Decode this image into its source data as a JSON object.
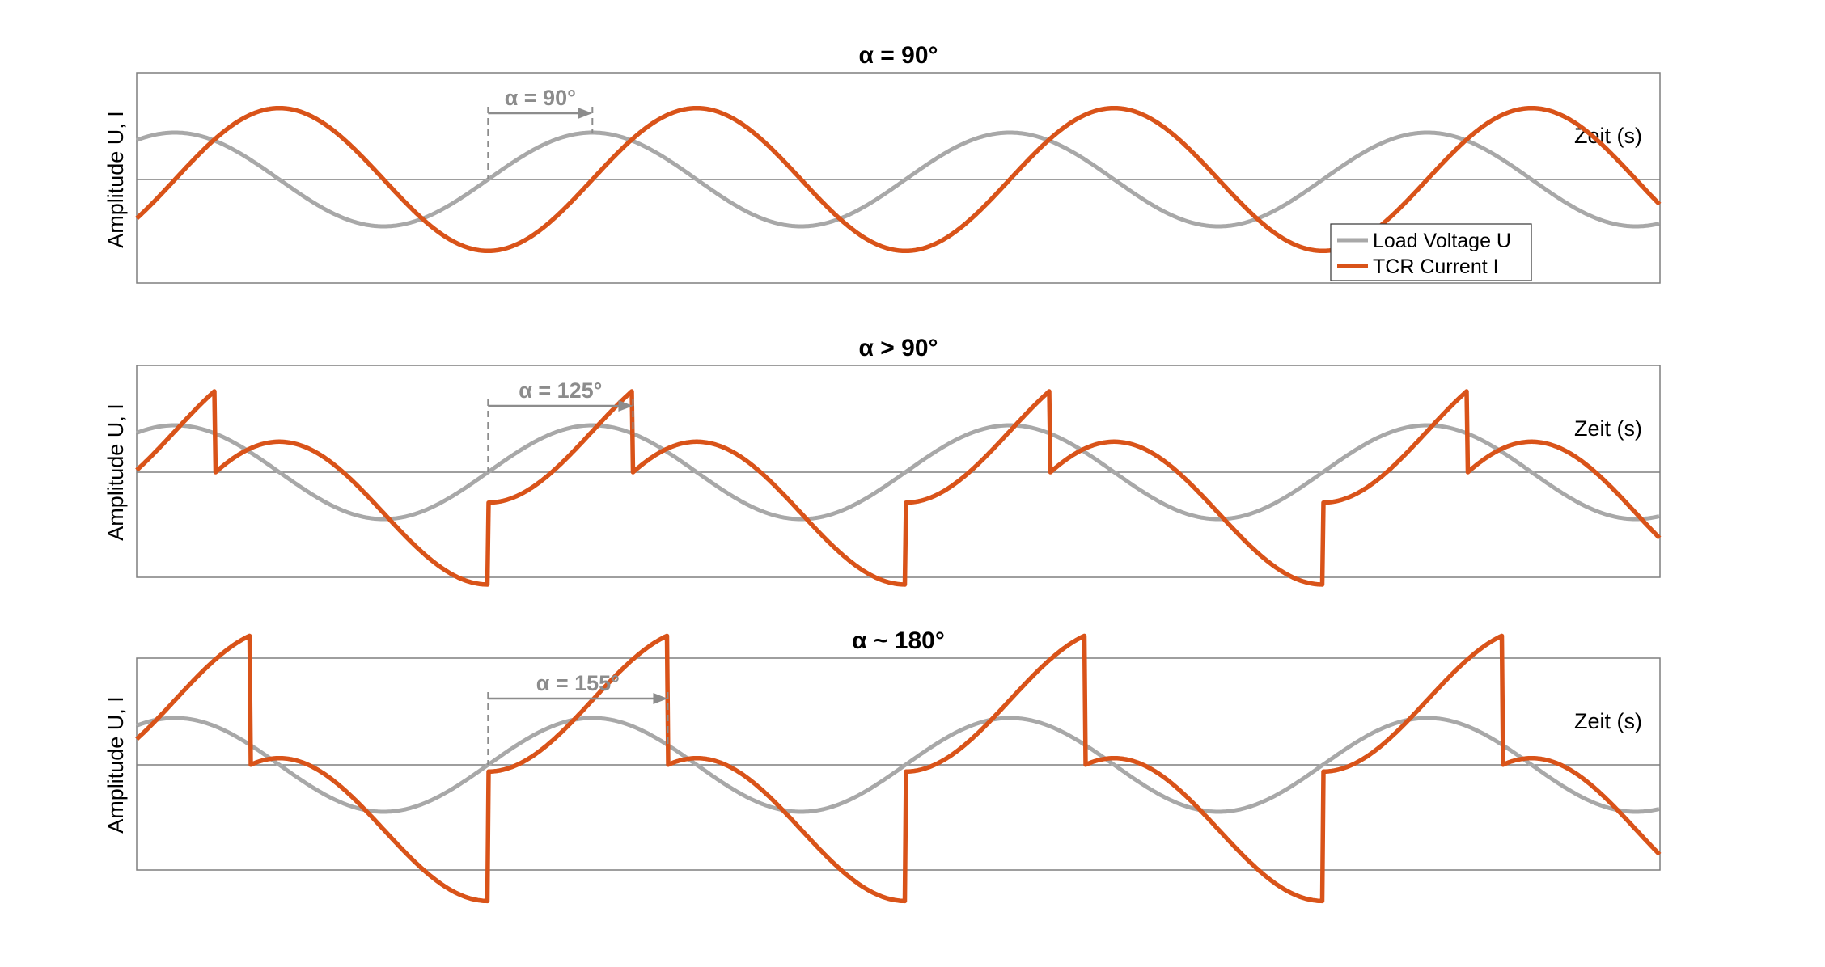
{
  "colors": {
    "voltage": "#a8a8a8",
    "current": "#d95319",
    "axis": "#7f7f7f",
    "annotation": "#8c8c8c"
  },
  "chart_data": [
    {
      "type": "line",
      "title": "α = 90°",
      "xlabel": "Zeit (s)",
      "ylabel": "Amplitude U, I",
      "alpha_deg": 90,
      "annotation": "α = 90°",
      "xlim": [
        0,
        1
      ],
      "ylim": [
        -1,
        1
      ],
      "periods_shown": 3.65,
      "series": [
        {
          "name": "Load Voltage U",
          "amplitude": 0.42,
          "phase_at_left_edge_deg": 57
        },
        {
          "name": "TCR Current I",
          "amplitude": 0.98,
          "lags_voltage_deg": 90
        }
      ],
      "legend": {
        "entries": [
          "Load Voltage U",
          "TCR Current I"
        ],
        "location": "bottom-right"
      }
    },
    {
      "type": "line",
      "title": "α > 90°",
      "xlabel": "Zeit (s)",
      "ylabel": "Amplitude U, I",
      "alpha_deg": 125,
      "annotation": "α = 125°",
      "xlim": [
        0,
        1
      ],
      "ylim": [
        -1,
        1
      ],
      "series": [
        {
          "name": "Load Voltage U",
          "amplitude": 0.45
        },
        {
          "name": "TCR Current I",
          "conduction": "firing angle 125°, zero between pulses"
        }
      ]
    },
    {
      "type": "line",
      "title": "α ~ 180°",
      "xlabel": "Zeit (s)",
      "ylabel": "Amplitude U, I",
      "alpha_deg": 155,
      "annotation": "α = 155°",
      "xlim": [
        0,
        1
      ],
      "ylim": [
        -1,
        1
      ],
      "series": [
        {
          "name": "Load Voltage U",
          "amplitude": 0.45
        },
        {
          "name": "TCR Current I",
          "conduction": "firing angle 155°, small pulses"
        }
      ]
    }
  ]
}
